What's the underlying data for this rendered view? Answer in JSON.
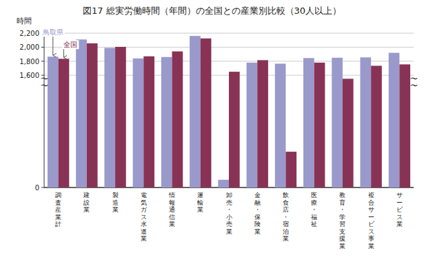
{
  "chart_data": {
    "type": "bar",
    "title": "図17  総実労働時間（年間）の全国との産業別比較（30人以上）",
    "y_label": "時間",
    "categories": [
      "調査産業計",
      "建設業",
      "製造業",
      "電気ガス水道業",
      "情報通信業",
      "運輸業",
      "卸売・小売業",
      "金融・保険業",
      "飲食店・宿泊業",
      "医療・福祉",
      "教育・学習支援業",
      "複合サービス事業",
      "サービス業"
    ],
    "series": [
      {
        "name": "鳥取県",
        "color": "#9999cc",
        "values": [
          1865,
          2110,
          1990,
          1840,
          1860,
          2160,
          110,
          1780,
          1765,
          1845,
          1850,
          1855,
          1920
        ]
      },
      {
        "name": "全国",
        "color": "#883355",
        "values": [
          1835,
          2055,
          2005,
          1870,
          1940,
          2125,
          1650,
          1815,
          510,
          1780,
          1550,
          1735,
          1755
        ]
      }
    ],
    "ylim": [
      0,
      2260
    ],
    "yticks": [
      0,
      {
        "value": 1600,
        "label": "1,600"
      },
      {
        "value": 1800,
        "label": "1,800"
      },
      {
        "value": 2000,
        "label": "2,000"
      },
      {
        "value": 2200,
        "label": "2,200"
      }
    ],
    "grid": true,
    "annotations": [
      "〜",
      "〜",
      "〜",
      "〜"
    ]
  }
}
